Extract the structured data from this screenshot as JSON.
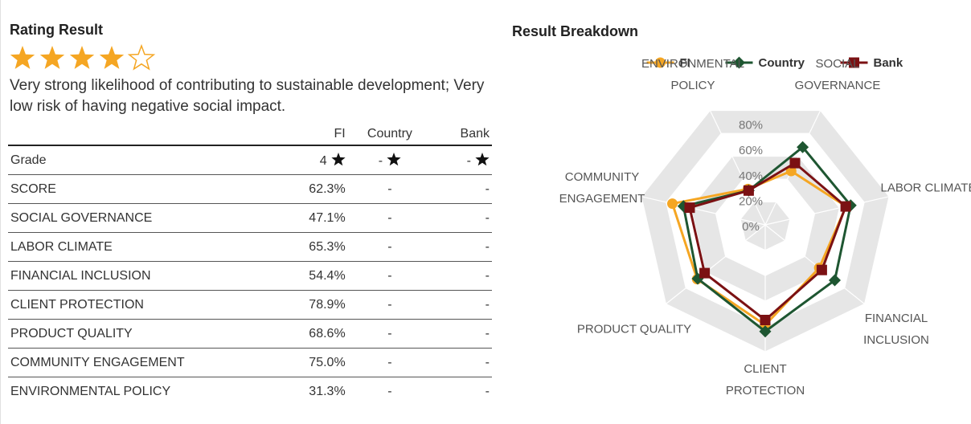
{
  "rating": {
    "title": "Rating Result",
    "stars": 4,
    "max_stars": 5,
    "description": "Very strong likelihood of contributing to sustainable development; Very low risk of having negative social impact."
  },
  "table": {
    "columns": [
      "FI",
      "Country",
      "Bank"
    ],
    "rows": [
      [
        "Grade",
        "4",
        "-",
        "-"
      ],
      [
        "SCORE",
        "62.3%",
        "-",
        "-"
      ],
      [
        "SOCIAL GOVERNANCE",
        "47.1%",
        "-",
        "-"
      ],
      [
        "LABOR CLIMATE",
        "65.3%",
        "-",
        "-"
      ],
      [
        "FINANCIAL INCLUSION",
        "54.4%",
        "-",
        "-"
      ],
      [
        "CLIENT PROTECTION",
        "78.9%",
        "-",
        "-"
      ],
      [
        "PRODUCT QUALITY",
        "68.6%",
        "-",
        "-"
      ],
      [
        "COMMUNITY ENGAGEMENT",
        "75.0%",
        "-",
        "-"
      ],
      [
        "ENVIRONMENTAL POLICY",
        "31.3%",
        "-",
        "-"
      ]
    ]
  },
  "chart_data": {
    "type": "radar",
    "title": "Result Breakdown",
    "categories": [
      "SOCIAL GOVERNANCE",
      "LABOR CLIMATE",
      "FINANCIAL INCLUSION",
      "CLIENT PROTECTION",
      "PRODUCT QUALITY",
      "COMMUNITY ENGAGEMENT",
      "ENVIRONMENTAL POLICY"
    ],
    "series": [
      {
        "name": "FI",
        "color": "#f5a623",
        "marker": "circle",
        "values": [
          47.1,
          65.3,
          54.4,
          78.9,
          68.6,
          75.0,
          31.3
        ]
      },
      {
        "name": "Country",
        "color": "#1e5631",
        "marker": "diamond",
        "values": [
          68,
          69,
          70,
          84,
          68,
          66,
          30
        ]
      },
      {
        "name": "Bank",
        "color": "#7b1113",
        "marker": "square",
        "values": [
          54,
          65,
          57,
          75,
          61,
          61,
          30
        ]
      }
    ],
    "ylim": [
      0,
      100
    ],
    "yticks": [
      {
        "value": 0,
        "label": "0%"
      },
      {
        "value": 20,
        "label": "20%"
      },
      {
        "value": 40,
        "label": "40%"
      },
      {
        "value": 60,
        "label": "60%"
      },
      {
        "value": 80,
        "label": "80%"
      }
    ],
    "legend": "top"
  }
}
